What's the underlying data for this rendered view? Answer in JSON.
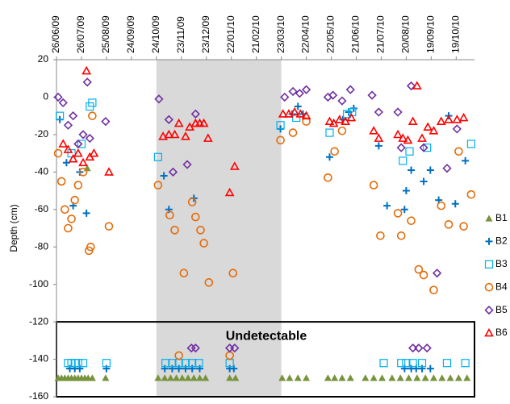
{
  "chart_data": {
    "type": "scatter",
    "y_label": "Depth (cm)",
    "annotation": "Undetectable",
    "undetectable_below": -120,
    "shaded_range": [
      "2009-10-24",
      "2010-03-23"
    ],
    "xlim": [
      "2009-06-26",
      "2010-11-10"
    ],
    "xticks": [
      {
        "value": "2009-06-26",
        "label": "26/06/09"
      },
      {
        "value": "2009-07-26",
        "label": "26/07/09"
      },
      {
        "value": "2009-08-25",
        "label": "25/08/09"
      },
      {
        "value": "2009-09-24",
        "label": "24/09/09"
      },
      {
        "value": "2009-10-24",
        "label": "24/10/09"
      },
      {
        "value": "2009-11-23",
        "label": "23/11/09"
      },
      {
        "value": "2009-12-23",
        "label": "23/12/09"
      },
      {
        "value": "2010-01-22",
        "label": "22/01/10"
      },
      {
        "value": "2010-02-21",
        "label": "21/02/10"
      },
      {
        "value": "2010-03-23",
        "label": "23/03/10"
      },
      {
        "value": "2010-04-22",
        "label": "22/04/10"
      },
      {
        "value": "2010-05-22",
        "label": "22/05/10"
      },
      {
        "value": "2010-06-21",
        "label": "21/06/10"
      },
      {
        "value": "2010-07-21",
        "label": "21/07/10"
      },
      {
        "value": "2010-08-20",
        "label": "20/08/10"
      },
      {
        "value": "2010-09-19",
        "label": "19/09/10"
      },
      {
        "value": "2010-10-19",
        "label": "19/10/10"
      }
    ],
    "ylim": [
      -160,
      20
    ],
    "yticks": [
      -160,
      -140,
      -120,
      -100,
      -80,
      -60,
      -40,
      -20,
      0,
      20
    ],
    "series": [
      {
        "name": "B1",
        "color": "#77933c",
        "marker": "triangle-filled",
        "x": [
          "2009-06-28",
          "2009-07-02",
          "2009-07-06",
          "2009-07-10",
          "2009-07-14",
          "2009-07-18",
          "2009-07-22",
          "2009-07-26",
          "2009-07-30",
          "2009-08-03",
          "2009-08-08",
          "2009-08-02",
          "2009-08-24",
          "2009-10-26",
          "2009-11-03",
          "2009-11-10",
          "2009-11-17",
          "2009-11-24",
          "2009-12-01",
          "2009-12-08",
          "2009-12-15",
          "2009-12-22",
          "2010-01-20",
          "2010-01-27",
          "2010-03-24",
          "2010-04-02",
          "2010-04-12",
          "2010-04-22",
          "2010-05-18",
          "2010-05-26",
          "2010-06-04",
          "2010-06-14",
          "2010-07-02",
          "2010-07-12",
          "2010-07-22",
          "2010-08-03",
          "2010-08-13",
          "2010-08-23",
          "2010-09-02",
          "2010-09-12",
          "2010-09-22",
          "2010-10-02",
          "2010-10-12",
          "2010-10-22",
          "2010-11-01"
        ],
        "values": [
          -150,
          -150,
          -150,
          -150,
          -150,
          -150,
          -150,
          -150,
          -150,
          -150,
          -150,
          -38,
          -150,
          -150,
          -150,
          -150,
          -150,
          -150,
          -150,
          -150,
          -150,
          -150,
          -150,
          -150,
          -150,
          -150,
          -150,
          -150,
          -150,
          -150,
          -150,
          -150,
          -150,
          -150,
          -150,
          -150,
          -150,
          -150,
          -150,
          -150,
          -150,
          -150,
          -150,
          -150,
          -150
        ]
      },
      {
        "name": "B2",
        "color": "#0070c0",
        "marker": "plus",
        "x": [
          "2009-06-30",
          "2009-07-08",
          "2009-07-16",
          "2009-07-24",
          "2009-08-01",
          "2009-11-02",
          "2009-11-08",
          "2009-12-08",
          "2010-03-22",
          "2010-04-05",
          "2010-04-12",
          "2010-04-18",
          "2010-05-20",
          "2010-06-05",
          "2010-06-12",
          "2010-06-18",
          "2010-07-18",
          "2010-07-28",
          "2010-08-18",
          "2010-08-20",
          "2010-08-26",
          "2010-09-10",
          "2010-09-18",
          "2010-09-28",
          "2010-10-10",
          "2010-10-18",
          "2010-10-30",
          "2009-07-12",
          "2009-07-18",
          "2009-07-24",
          "2009-08-25",
          "2009-11-03",
          "2009-11-12",
          "2009-11-20",
          "2009-11-28",
          "2009-12-06",
          "2009-12-15",
          "2010-01-20",
          "2010-01-25",
          "2010-08-18",
          "2010-08-26",
          "2010-09-01",
          "2010-09-08",
          "2010-09-18"
        ],
        "values": [
          -12,
          -35,
          -58,
          -40,
          -62,
          -42,
          -60,
          -54,
          -17,
          -9,
          -5,
          -9,
          -32,
          -12,
          -8,
          -6,
          -26,
          -58,
          -60,
          -50,
          -39,
          -45,
          -39,
          -55,
          -10,
          -57,
          -34,
          -145,
          -145,
          -145,
          -145,
          -145,
          -145,
          -145,
          -145,
          -145,
          -145,
          -145,
          -145,
          -145,
          -145,
          -145,
          -145,
          -145
        ]
      },
      {
        "name": "B3",
        "color": "#00b0f0",
        "marker": "square",
        "x": [
          "2009-06-30",
          "2009-07-14",
          "2009-07-26",
          "2009-08-05",
          "2009-08-08",
          "2009-10-26",
          "2010-03-22",
          "2010-04-10",
          "2010-05-20",
          "2010-06-10",
          "2010-06-16",
          "2010-08-16",
          "2010-08-24",
          "2010-09-14",
          "2010-11-06",
          "2009-07-10",
          "2009-07-14",
          "2009-07-18",
          "2009-07-22",
          "2009-07-28",
          "2009-08-25",
          "2009-11-04",
          "2009-11-12",
          "2009-11-20",
          "2009-11-28",
          "2009-12-06",
          "2009-12-14",
          "2010-01-20",
          "2010-07-24",
          "2010-08-14",
          "2010-08-20",
          "2010-08-28",
          "2010-09-08",
          "2010-10-08",
          "2010-10-30"
        ],
        "values": [
          -10,
          -30,
          -25,
          -5,
          -3,
          -32,
          -15,
          -11,
          -19,
          -9,
          -8,
          -34,
          -29,
          -27,
          -25,
          -142,
          -142,
          -142,
          -142,
          -142,
          -142,
          -142,
          -142,
          -142,
          -142,
          -142,
          -142,
          -142,
          -142,
          -142,
          -142,
          -142,
          -142,
          -142,
          -142
        ]
      },
      {
        "name": "B4",
        "color": "#e46c0a",
        "marker": "circle",
        "x": [
          "2009-06-28",
          "2009-07-02",
          "2009-07-06",
          "2009-07-10",
          "2009-07-14",
          "2009-07-18",
          "2009-07-22",
          "2009-07-28",
          "2009-08-04",
          "2009-08-06",
          "2009-08-08",
          "2009-08-28",
          "2009-10-26",
          "2009-11-09",
          "2009-11-15",
          "2009-11-26",
          "2009-12-06",
          "2009-12-10",
          "2009-12-16",
          "2009-12-20",
          "2009-12-26",
          "2010-01-24",
          "2010-03-22",
          "2010-04-06",
          "2010-04-22",
          "2010-05-18",
          "2010-05-26",
          "2010-06-04",
          "2010-07-12",
          "2010-07-20",
          "2010-08-10",
          "2010-08-14",
          "2010-08-26",
          "2010-09-04",
          "2010-09-10",
          "2010-09-22",
          "2010-10-01",
          "2010-10-10",
          "2010-10-22",
          "2010-10-28",
          "2010-11-06",
          "2009-11-20",
          "2010-01-20"
        ],
        "values": [
          -30,
          -45,
          -60,
          -70,
          -65,
          -55,
          -47,
          -40,
          -82,
          -80,
          -10,
          -69,
          -47,
          -63,
          -71,
          -94,
          -56,
          -64,
          -71,
          -78,
          -99,
          -94,
          -23,
          -19,
          -13,
          -43,
          -29,
          -18,
          -47,
          -74,
          -62,
          -74,
          -66,
          -92,
          -95,
          -103,
          -58,
          -68,
          -29,
          -69,
          -52,
          -138,
          -138
        ]
      },
      {
        "name": "B5",
        "color": "#7030a0",
        "marker": "diamond",
        "x": [
          "2009-06-28",
          "2009-07-04",
          "2009-07-10",
          "2009-07-16",
          "2009-07-22",
          "2009-07-28",
          "2009-08-02",
          "2009-08-05",
          "2009-08-24",
          "2009-10-27",
          "2009-11-08",
          "2009-11-13",
          "2009-11-30",
          "2009-12-10",
          "2010-03-27",
          "2010-04-06",
          "2010-04-14",
          "2010-04-22",
          "2010-05-18",
          "2010-05-24",
          "2010-06-04",
          "2010-06-14",
          "2010-07-10",
          "2010-07-18",
          "2010-08-10",
          "2010-08-14",
          "2010-08-26",
          "2010-09-10",
          "2010-09-26",
          "2010-10-08",
          "2010-10-20",
          "2009-12-05",
          "2009-12-10",
          "2010-01-20",
          "2010-01-26",
          "2010-08-28",
          "2010-09-04",
          "2010-09-14"
        ],
        "values": [
          0,
          -3,
          -15,
          -10,
          -25,
          -20,
          8,
          -22,
          -13,
          -1,
          -12,
          -40,
          -36,
          -9,
          0,
          3,
          2,
          4,
          0,
          1,
          -2,
          4,
          1,
          -8,
          -8,
          -27,
          6,
          -27,
          -94,
          -38,
          -17,
          -134,
          -134,
          -134,
          -134,
          -134,
          -134,
          -134
        ]
      },
      {
        "name": "B6",
        "color": "#ff0000",
        "marker": "triangle",
        "x": [
          "2009-07-04",
          "2009-07-10",
          "2009-07-16",
          "2009-07-22",
          "2009-07-28",
          "2009-08-01",
          "2009-08-05",
          "2009-08-10",
          "2009-08-28",
          "2009-11-01",
          "2009-11-08",
          "2009-11-15",
          "2009-11-20",
          "2009-11-28",
          "2009-12-03",
          "2009-12-10",
          "2009-12-15",
          "2009-12-20",
          "2009-12-25",
          "2010-01-20",
          "2010-01-26",
          "2010-03-25",
          "2010-04-01",
          "2010-04-08",
          "2010-04-15",
          "2010-04-22",
          "2010-05-20",
          "2010-05-25",
          "2010-06-01",
          "2010-06-08",
          "2010-06-15",
          "2010-07-12",
          "2010-07-18",
          "2010-08-10",
          "2010-08-16",
          "2010-08-22",
          "2010-08-28",
          "2010-09-02",
          "2010-09-08",
          "2010-09-15",
          "2010-09-22",
          "2010-10-01",
          "2010-10-10",
          "2010-10-20",
          "2010-10-28"
        ],
        "values": [
          -25,
          -28,
          -33,
          -30,
          -35,
          14,
          -32,
          -30,
          -40,
          -21,
          -20,
          -20,
          -14,
          -21,
          -16,
          -14,
          -14,
          -14,
          -22,
          -51,
          -37,
          -9,
          -9,
          -8,
          -9,
          -10,
          -13,
          -14,
          -12,
          -13,
          -11,
          -18,
          -22,
          -20,
          -22,
          -23,
          -13,
          6,
          -22,
          -16,
          -18,
          -13,
          -12,
          -12,
          -11
        ]
      }
    ]
  }
}
